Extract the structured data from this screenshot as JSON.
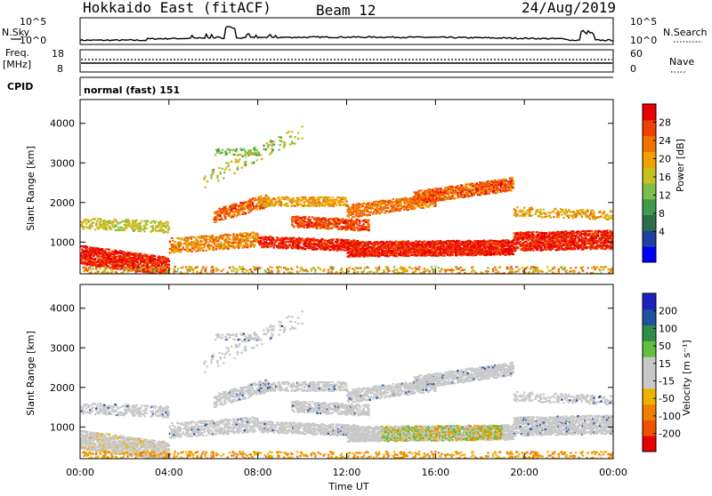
{
  "header": {
    "title": "Hokkaido East (fitACF)",
    "beam": "Beam 12",
    "date": "24/Aug/2019"
  },
  "nsky_panel": {
    "left_label": "N.Sky",
    "left_ticks": [
      "10^5",
      "10^0"
    ],
    "right_ticks": [
      "10^5",
      "10^0"
    ],
    "right_label": "N.Search"
  },
  "freq_panel": {
    "left_label_1": "Freq.",
    "left_label_2": "[MHz]",
    "left_ticks": [
      "18",
      "8"
    ],
    "right_ticks": [
      "60",
      "0"
    ],
    "right_label": "Nave"
  },
  "cpid_panel": {
    "label": "CPID",
    "mode": "normal (fast) 151"
  },
  "chart_data": [
    {
      "type": "heatmap",
      "name": "power",
      "ylabel": "Slant Range [km]",
      "yticks": [
        "4000",
        "3000",
        "2000",
        "1000"
      ],
      "ylim": [
        200,
        4600
      ],
      "xlim": [
        0,
        24
      ],
      "colorbar": {
        "label": "Power [dB]",
        "ticks": [
          "28",
          "24",
          "20",
          "16",
          "12",
          "8",
          "4"
        ],
        "colors": [
          "#0000ff",
          "#2040a0",
          "#2d6e4a",
          "#3c9a4a",
          "#7cc04a",
          "#c8c020",
          "#f0a000",
          "#f07000",
          "#f04000",
          "#e80000"
        ]
      }
    },
    {
      "type": "heatmap",
      "name": "velocity",
      "ylabel": "Slant Range [km]",
      "yticks": [
        "4000",
        "3000",
        "2000",
        "1000"
      ],
      "ylim": [
        200,
        4600
      ],
      "xlim": [
        0,
        24
      ],
      "colorbar": {
        "label": "Velocity [m s⁻¹]",
        "ticks": [
          "200",
          "100",
          "50",
          "15",
          "-15",
          "-50",
          "-100",
          "-200"
        ],
        "colors": [
          "#e80000",
          "#f05000",
          "#f08000",
          "#f0b000",
          "#c8c8c8",
          "#c8c8c8",
          "#60c040",
          "#2e8c4a",
          "#2050a0",
          "#2020c0"
        ]
      }
    }
  ],
  "xaxis": {
    "ticks": [
      "00:00",
      "04:00",
      "08:00",
      "12:00",
      "16:00",
      "20:00",
      "00:00"
    ],
    "label": "Time UT"
  }
}
